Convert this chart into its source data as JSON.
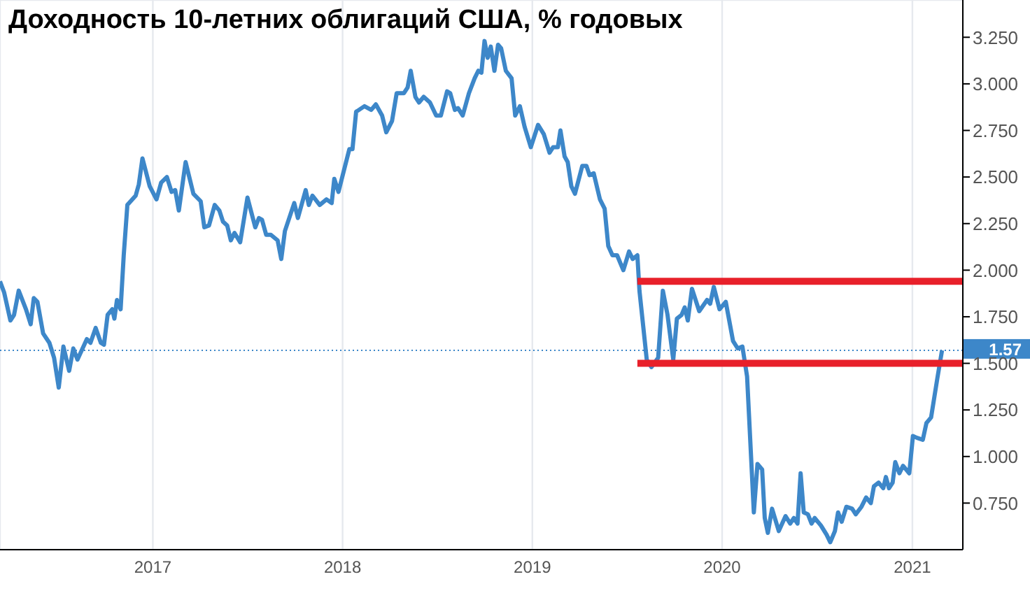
{
  "chart_data": {
    "type": "line",
    "title": "Доходность 10-летних облигаций США, % годовых",
    "xlim": [
      "2016-03-13",
      "2021-04-08"
    ],
    "xticks": [
      "2017",
      "2018",
      "2019",
      "2020",
      "2021"
    ],
    "ylim": [
      0.5,
      3.45
    ],
    "yticks": [
      {
        "value": 0.75,
        "label": "0.750"
      },
      {
        "value": 1,
        "label": "1.000"
      },
      {
        "value": 1.25,
        "label": "1.250"
      },
      {
        "value": 1.5,
        "label": "1.500"
      },
      {
        "value": 1.75,
        "label": "1.750"
      },
      {
        "value": 2,
        "label": "2.000"
      },
      {
        "value": 2.25,
        "label": "2.250"
      },
      {
        "value": 2.5,
        "label": "2.500"
      },
      {
        "value": 2.75,
        "label": "2.750"
      },
      {
        "value": 3,
        "label": "3.000"
      },
      {
        "value": 3.25,
        "label": "3.250"
      }
    ],
    "grid": true,
    "marker": "none",
    "line_style": "solid",
    "ref_lines": [
      {
        "axis": "y",
        "value": 1.57,
        "label": "1.57",
        "color": "#3d87c9",
        "line_style": "dotted"
      }
    ],
    "series": [
      {
        "color": "#3d87c9",
        "x": [
          "2016-03-13",
          "2016-03-21",
          "2016-04-02",
          "2016-04-09",
          "2016-04-18",
          "2016-05-02",
          "2016-05-11",
          "2016-05-17",
          "2016-05-24",
          "2016-06-04",
          "2016-06-16",
          "2016-06-25",
          "2016-07-04",
          "2016-07-13",
          "2016-07-24",
          "2016-08-01",
          "2016-08-09",
          "2016-08-27",
          "2016-09-03",
          "2016-09-13",
          "2016-09-23",
          "2016-09-29",
          "2016-10-06",
          "2016-10-15",
          "2016-10-19",
          "2016-10-24",
          "2016-10-31",
          "2016-11-06",
          "2016-11-13",
          "2016-11-29",
          "2016-12-05",
          "2016-12-12",
          "2016-12-26",
          "2017-01-08",
          "2017-01-17",
          "2017-01-28",
          "2017-02-06",
          "2017-02-13",
          "2017-02-20",
          "2017-03-05",
          "2017-03-20",
          "2017-04-03",
          "2017-04-10",
          "2017-04-19",
          "2017-04-30",
          "2017-05-09",
          "2017-05-16",
          "2017-05-24",
          "2017-05-31",
          "2017-06-07",
          "2017-06-18",
          "2017-07-02",
          "2017-07-17",
          "2017-07-24",
          "2017-07-30",
          "2017-08-07",
          "2017-08-16",
          "2017-08-29",
          "2017-09-05",
          "2017-09-12",
          "2017-09-30",
          "2017-10-07",
          "2017-10-22",
          "2017-10-28",
          "2017-11-04",
          "2017-11-18",
          "2017-12-01",
          "2017-12-11",
          "2017-12-16",
          "2017-12-24",
          "2018-01-14",
          "2018-01-20",
          "2018-01-27",
          "2018-02-12",
          "2018-02-25",
          "2018-03-06",
          "2018-03-18",
          "2018-03-26",
          "2018-04-06",
          "2018-04-15",
          "2018-04-29",
          "2018-05-06",
          "2018-05-12",
          "2018-05-21",
          "2018-05-28",
          "2018-06-06",
          "2018-06-18",
          "2018-06-30",
          "2018-07-09",
          "2018-07-21",
          "2018-07-27",
          "2018-08-05",
          "2018-08-11",
          "2018-08-20",
          "2018-09-01",
          "2018-09-12",
          "2018-09-19",
          "2018-09-25",
          "2018-10-01",
          "2018-10-07",
          "2018-10-13",
          "2018-10-20",
          "2018-10-27",
          "2018-11-02",
          "2018-11-11",
          "2018-11-22",
          "2018-11-29",
          "2018-12-08",
          "2018-12-17",
          "2018-12-29",
          "2019-01-12",
          "2019-01-23",
          "2019-02-03",
          "2019-02-10",
          "2019-02-19",
          "2019-02-24",
          "2019-03-04",
          "2019-03-10",
          "2019-03-17",
          "2019-03-24",
          "2019-04-07",
          "2019-04-15",
          "2019-04-21",
          "2019-04-29",
          "2019-05-11",
          "2019-05-20",
          "2019-05-27",
          "2019-06-04",
          "2019-06-13",
          "2019-06-25",
          "2019-07-06",
          "2019-07-13",
          "2019-07-22",
          "2019-07-26",
          "2019-08-09",
          "2019-08-18",
          "2019-08-31",
          "2019-09-09",
          "2019-09-18",
          "2019-09-29",
          "2019-10-06",
          "2019-10-15",
          "2019-10-21",
          "2019-10-27",
          "2019-11-04",
          "2019-11-18",
          "2019-12-03",
          "2019-12-09",
          "2019-12-16",
          "2019-12-27",
          "2020-01-08",
          "2020-01-22",
          "2020-01-31",
          "2020-02-09",
          "2020-02-18",
          "2020-03-02",
          "2020-03-09",
          "2020-03-18",
          "2020-03-23",
          "2020-03-29",
          "2020-04-06",
          "2020-04-19",
          "2020-05-02",
          "2020-05-11",
          "2020-05-18",
          "2020-05-25",
          "2020-05-31",
          "2020-06-06",
          "2020-06-14",
          "2020-06-21",
          "2020-06-27",
          "2020-07-09",
          "2020-07-20",
          "2020-07-27",
          "2020-08-05",
          "2020-08-11",
          "2020-08-18",
          "2020-08-27",
          "2020-09-07",
          "2020-09-14",
          "2020-09-25",
          "2020-10-04",
          "2020-10-13",
          "2020-10-19",
          "2020-10-28",
          "2020-11-06",
          "2020-11-11",
          "2020-11-17",
          "2020-11-24",
          "2020-11-29",
          "2020-12-07",
          "2020-12-14",
          "2020-12-26",
          "2021-01-02",
          "2021-01-10",
          "2021-01-21",
          "2021-01-28",
          "2021-02-06",
          "2021-02-18",
          "2021-02-27"
        ],
        "values": [
          1.94,
          1.88,
          1.73,
          1.76,
          1.89,
          1.79,
          1.71,
          1.85,
          1.83,
          1.66,
          1.61,
          1.53,
          1.37,
          1.59,
          1.46,
          1.58,
          1.52,
          1.63,
          1.61,
          1.69,
          1.61,
          1.6,
          1.76,
          1.79,
          1.74,
          1.84,
          1.79,
          2.08,
          2.35,
          2.4,
          2.46,
          2.6,
          2.45,
          2.38,
          2.47,
          2.5,
          2.42,
          2.43,
          2.32,
          2.58,
          2.41,
          2.37,
          2.23,
          2.24,
          2.35,
          2.32,
          2.26,
          2.24,
          2.16,
          2.2,
          2.15,
          2.39,
          2.23,
          2.28,
          2.27,
          2.19,
          2.19,
          2.16,
          2.06,
          2.21,
          2.36,
          2.28,
          2.43,
          2.35,
          2.4,
          2.35,
          2.38,
          2.36,
          2.49,
          2.42,
          2.65,
          2.65,
          2.85,
          2.88,
          2.86,
          2.89,
          2.83,
          2.74,
          2.8,
          2.95,
          2.95,
          2.98,
          3.07,
          2.93,
          2.9,
          2.93,
          2.9,
          2.83,
          2.83,
          2.96,
          2.95,
          2.86,
          2.87,
          2.83,
          2.95,
          3.03,
          3.07,
          3.06,
          3.23,
          3.14,
          3.2,
          3.07,
          3.21,
          3.19,
          3.07,
          3.03,
          2.83,
          2.88,
          2.77,
          2.66,
          2.78,
          2.73,
          2.63,
          2.66,
          2.66,
          2.75,
          2.61,
          2.58,
          2.45,
          2.41,
          2.56,
          2.56,
          2.51,
          2.52,
          2.38,
          2.33,
          2.13,
          2.08,
          2.08,
          2.0,
          2.1,
          2.06,
          2.08,
          1.89,
          1.52,
          1.48,
          1.53,
          1.89,
          1.76,
          1.52,
          1.74,
          1.76,
          1.8,
          1.73,
          1.9,
          1.78,
          1.84,
          1.82,
          1.91,
          1.79,
          1.83,
          1.62,
          1.58,
          1.59,
          1.43,
          0.7,
          0.96,
          0.93,
          0.67,
          0.59,
          0.72,
          0.6,
          0.68,
          0.64,
          0.67,
          0.64,
          0.91,
          0.7,
          0.69,
          0.64,
          0.67,
          0.63,
          0.58,
          0.54,
          0.6,
          0.7,
          0.65,
          0.73,
          0.72,
          0.69,
          0.73,
          0.78,
          0.75,
          0.84,
          0.86,
          0.83,
          0.89,
          0.83,
          0.86,
          0.97,
          0.91,
          0.95,
          0.91,
          1.11,
          1.1,
          1.09,
          1.18,
          1.21,
          1.42,
          1.57
        ]
      },
      {
        "type": "line",
        "color": "#e8202a",
        "x": [
          "2019-07-22",
          "2021-04-08"
        ],
        "values": [
          1.94,
          1.94
        ]
      },
      {
        "type": "line",
        "color": "#e8202a",
        "x": [
          "2019-07-22",
          "2021-04-08"
        ],
        "values": [
          1.5,
          1.5
        ]
      }
    ]
  }
}
